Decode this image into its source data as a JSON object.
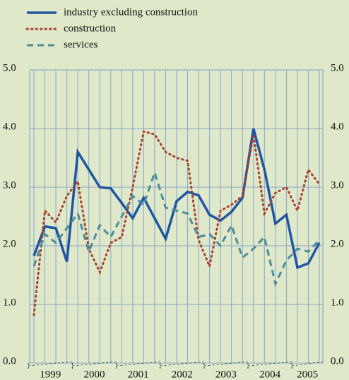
{
  "chart_data": {
    "type": "line",
    "categories": [
      "1999",
      null,
      null,
      null,
      "2000",
      null,
      null,
      null,
      "2001",
      null,
      null,
      null,
      "2002",
      null,
      null,
      null,
      "2003",
      null,
      null,
      null,
      "2004",
      null,
      null,
      null,
      "2005",
      null,
      null
    ],
    "series": [
      {
        "name": "industry excluding construction",
        "color": "#1f55a3",
        "dash": "solid",
        "values": [
          1.83,
          2.33,
          2.3,
          1.73,
          3.6,
          3.3,
          3.0,
          2.98,
          2.73,
          2.47,
          2.82,
          2.47,
          2.12,
          2.76,
          2.92,
          2.86,
          2.53,
          2.43,
          2.58,
          2.82,
          4.0,
          3.3,
          2.38,
          2.53,
          1.63,
          1.7,
          2.05
        ]
      },
      {
        "name": "construction",
        "color": "#a8402f",
        "dash": "dotted",
        "values": [
          0.82,
          2.6,
          2.4,
          2.85,
          3.1,
          1.95,
          1.55,
          2.05,
          2.15,
          3.0,
          3.95,
          3.9,
          3.6,
          3.5,
          3.45,
          2.1,
          1.65,
          2.6,
          2.7,
          2.85,
          3.9,
          2.55,
          2.9,
          3.0,
          2.6,
          3.3,
          3.05
        ]
      },
      {
        "name": "services",
        "color": "#4c8c98",
        "dash": "dashed",
        "values": [
          1.65,
          2.2,
          2.05,
          2.3,
          2.55,
          1.9,
          2.35,
          2.15,
          2.5,
          2.85,
          2.7,
          3.25,
          2.65,
          2.6,
          2.55,
          2.15,
          2.2,
          2.0,
          2.35,
          1.8,
          1.95,
          2.15,
          1.35,
          1.75,
          1.95,
          1.9,
          2.1
        ]
      }
    ],
    "ylim": [
      0,
      5
    ],
    "yticks": [
      {
        "value": 0,
        "label": "0.0"
      },
      {
        "value": 1,
        "label": "1.0"
      },
      {
        "value": 2,
        "label": "2.0"
      },
      {
        "value": 3,
        "label": "3.0"
      },
      {
        "value": 4,
        "label": "4.0"
      },
      {
        "value": 5,
        "label": "5.0"
      }
    ],
    "grid": true,
    "legend": "top-left"
  }
}
